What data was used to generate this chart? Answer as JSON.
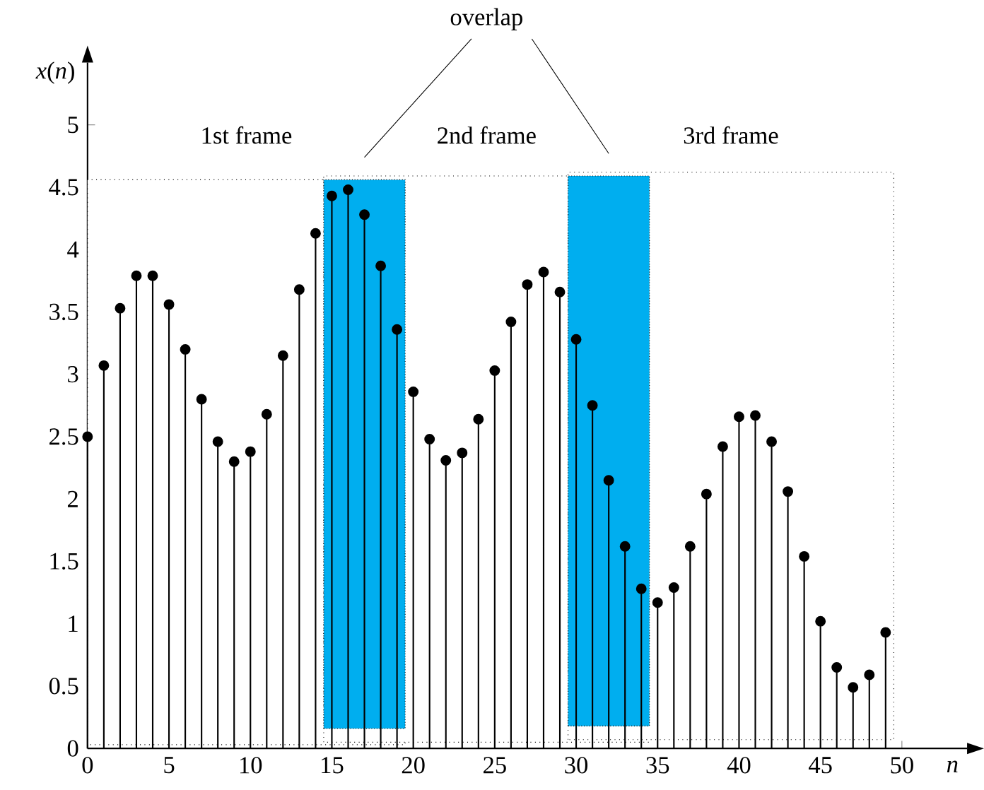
{
  "chart_data": {
    "type": "lollipop",
    "xlabel": "n",
    "ylabel": "*x*(*n*)",
    "x": [
      0,
      1,
      2,
      3,
      4,
      5,
      6,
      7,
      8,
      9,
      10,
      11,
      12,
      13,
      14,
      15,
      16,
      17,
      18,
      19,
      20,
      21,
      22,
      23,
      24,
      25,
      26,
      27,
      28,
      29,
      30,
      31,
      32,
      33,
      34,
      35,
      36,
      37,
      38,
      39,
      40,
      41,
      42,
      43,
      44,
      45,
      46,
      47,
      48,
      49
    ],
    "values": [
      2.5,
      3.07,
      3.53,
      3.79,
      3.79,
      3.56,
      3.2,
      2.8,
      2.46,
      2.3,
      2.38,
      2.68,
      3.15,
      3.68,
      4.13,
      4.43,
      4.48,
      4.28,
      3.87,
      3.36,
      2.86,
      2.48,
      2.31,
      2.37,
      2.64,
      3.03,
      3.42,
      3.72,
      3.82,
      3.66,
      3.28,
      2.75,
      2.15,
      1.62,
      1.28,
      1.17,
      1.29,
      1.62,
      2.04,
      2.42,
      2.66,
      2.67,
      2.46,
      2.06,
      1.54,
      1.02,
      0.65,
      0.49,
      0.59,
      0.93
    ],
    "color": "#000000",
    "marker": "circle",
    "xlim": [
      0,
      54
    ],
    "ylim": [
      0,
      5.5
    ],
    "xticks": [
      0,
      5,
      10,
      15,
      20,
      25,
      30,
      35,
      40,
      45,
      50
    ],
    "yticks": [
      0,
      0.5,
      1,
      1.5,
      2,
      2.5,
      3,
      3.5,
      4,
      4.5,
      5
    ],
    "bands": [
      {
        "axis": "x",
        "from": 0,
        "to": 19.5,
        "label": "1st frame",
        "color": "#ffffff"
      },
      {
        "axis": "x",
        "from": 14.5,
        "to": 34.5,
        "label": "2nd frame",
        "color": "#ffffff"
      },
      {
        "axis": "x",
        "from": 29.5,
        "to": 49.5,
        "label": "3rd frame",
        "color": "#ffffff"
      },
      {
        "axis": "x",
        "from": 14.5,
        "to": 19.5,
        "color": "#00aeef"
      },
      {
        "axis": "x",
        "from": 29.5,
        "to": 34.5,
        "color": "#00aeef"
      }
    ],
    "annotations": [
      "overlap"
    ]
  }
}
